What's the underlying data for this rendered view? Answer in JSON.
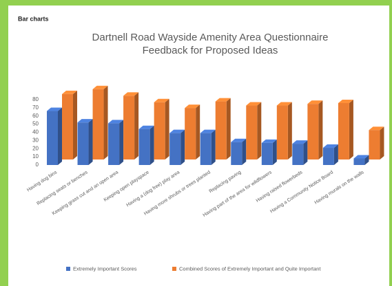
{
  "section_label": "Bar charts",
  "chart_data": {
    "type": "bar3d",
    "title": [
      "Dartnell Road Wayside Amenity Area Questionnaire",
      "Feedback for Proposed Ideas"
    ],
    "categories": [
      "Having dog bins",
      "Replacing seats or benches",
      "Keeping grass cut and an open area",
      "Keeping open playspace",
      "Having a (dog free) play area",
      "Having more shrubs or trees planted",
      "Replacing paving",
      "Having part of the area for wildflowers",
      "Having raised flowerbeds",
      "Having a Community Notice Board",
      "Having murals on the walls"
    ],
    "series": [
      {
        "name": "Extremely Important Scores",
        "color": "#4472c4",
        "values": [
          66,
          52,
          51,
          44,
          39,
          39,
          28,
          27,
          26,
          21,
          8
        ]
      },
      {
        "name": "Combined Scores of Extremely Important and Quite Important",
        "color": "#ed7d31",
        "values": [
          80,
          86,
          78,
          70,
          63,
          71,
          66,
          66,
          68,
          69,
          36
        ]
      }
    ],
    "ylim": [
      0,
      90
    ],
    "yticks": [
      0,
      10,
      20,
      30,
      40,
      50,
      60,
      70,
      80
    ],
    "legend": "bottom"
  }
}
